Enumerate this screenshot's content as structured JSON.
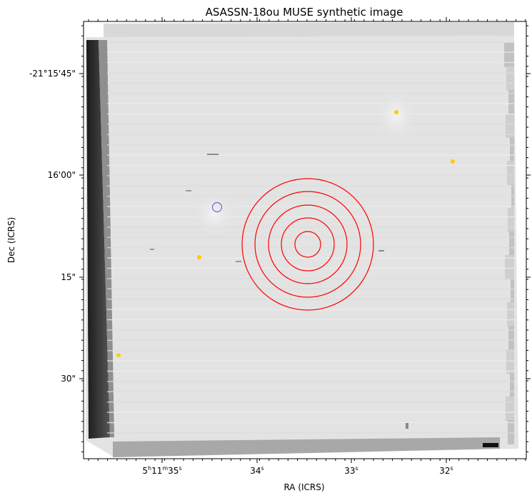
{
  "figure": {
    "title": "ASASSN-18ou MUSE synthetic image",
    "xlabel": "RA (ICRS)",
    "ylabel": "Dec (ICRS)"
  },
  "ra_ticks": [
    {
      "h": "5",
      "m": "11",
      "s": "35"
    },
    {
      "s": "34"
    },
    {
      "s": "33"
    },
    {
      "s": "32"
    }
  ],
  "dec_ticks": [
    "-21°15'45\"",
    "16'00\"",
    "15\"",
    "30\""
  ],
  "colors": {
    "background_field": "#e4e4e4",
    "aperture_rings": "#ff0000",
    "star_markers": "#ffcc00",
    "blue_marker": "#6a6adf"
  },
  "markers": {
    "aperture_ring_count": 5,
    "star_count": 4,
    "blue_circle_count": 1
  }
}
